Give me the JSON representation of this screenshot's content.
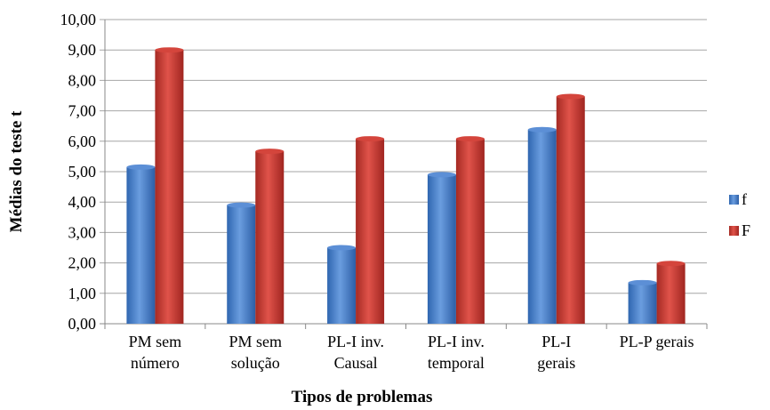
{
  "chart_data": {
    "type": "bar",
    "categories": [
      [
        "PM sem",
        "número"
      ],
      [
        "PM sem",
        "solução"
      ],
      [
        "PL-I inv.",
        "Causal"
      ],
      [
        "PL-I inv.",
        "temporal"
      ],
      [
        "PL-I",
        "gerais"
      ],
      [
        "PL-P gerais"
      ]
    ],
    "series": [
      {
        "name": "f",
        "values": [
          5.15,
          3.9,
          2.5,
          4.9,
          6.38,
          1.35
        ],
        "color": "#4a7fc4"
      },
      {
        "name": "F",
        "values": [
          9.0,
          5.67,
          6.08,
          6.08,
          7.47,
          1.98
        ],
        "color": "#c0392b"
      }
    ],
    "title": "",
    "xlabel": "Tipos de problemas",
    "ylabel": "Médias do teste t",
    "ylim": [
      0,
      10
    ],
    "yticks": [
      "0,00",
      "1,00",
      "2,00",
      "3,00",
      "4,00",
      "5,00",
      "6,00",
      "7,00",
      "8,00",
      "9,00",
      "10,00"
    ],
    "grid": true,
    "legend": "right"
  }
}
